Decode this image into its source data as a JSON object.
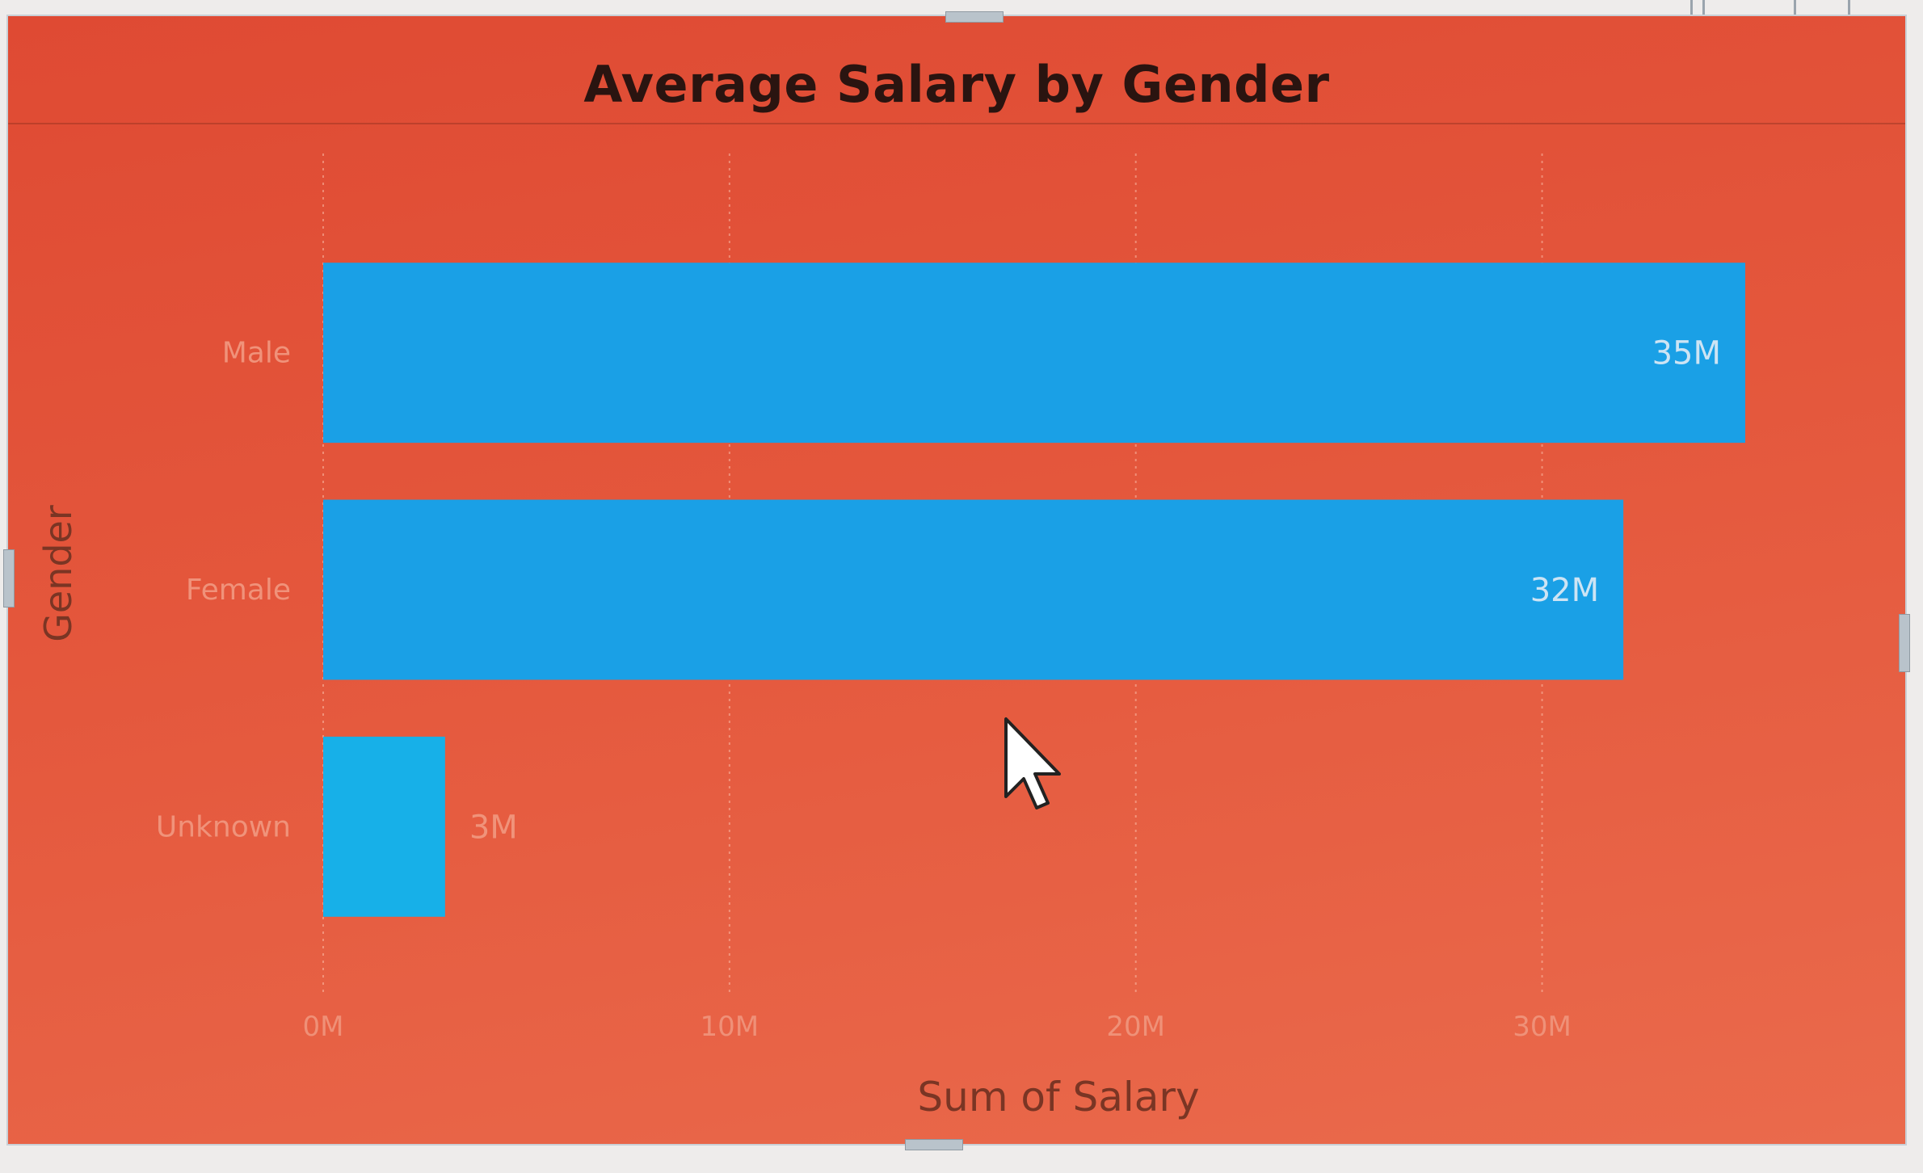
{
  "visual": {
    "background_color": "#e4573c",
    "bar_color": "#1aa0e6",
    "bar_color_small": "#17b0e8",
    "header_icons": [
      "focus-mode-icon",
      "more-options-icon"
    ]
  },
  "chart_data": {
    "type": "bar",
    "orientation": "horizontal",
    "title": "Average Salary by Gender",
    "xlabel": "Sum of Salary",
    "ylabel": "Gender",
    "categories": [
      "Male",
      "Female",
      "Unknown"
    ],
    "values": [
      35,
      32,
      3
    ],
    "data_labels": [
      "35M",
      "32M",
      "3M"
    ],
    "xlim": [
      0,
      35
    ],
    "x_ticks": [
      0,
      10,
      20,
      30
    ],
    "x_tick_labels": [
      "0M",
      "10M",
      "20M",
      "30M"
    ],
    "grid": true,
    "legend": "none"
  }
}
